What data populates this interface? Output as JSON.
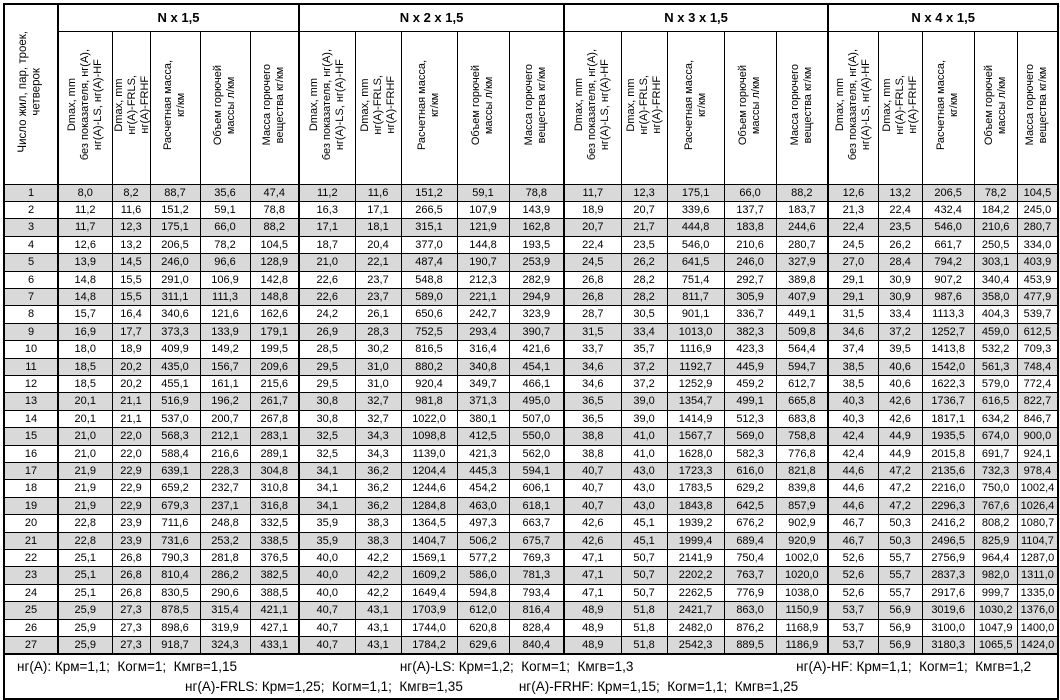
{
  "colors": {
    "stripe": "#d9d9d9",
    "border": "#000000",
    "text": "#000000",
    "background": "#ffffff"
  },
  "table": {
    "row_axis_header": "Число жил, пар, троек,\nчетверок",
    "groups": [
      {
        "title": "N x 1,5"
      },
      {
        "title": "N x 2 x 1,5"
      },
      {
        "title": "N x 3 x 1,5"
      },
      {
        "title": "N x 4 x 1,5"
      }
    ],
    "column_headers": [
      "Dmax, mm\nбез показателя, нг(А),\nнг(А)-LS, нг(А)-HF",
      "Dmax, mm\nнг(А)-FRLS,\nнг(А)-FRHF",
      "Расчетная масса,\nкг/км",
      "Объем горючей\nмассы л/км",
      "Масса горючего\nвещества кг/км"
    ],
    "rows": [
      [
        "1",
        "8,0",
        "8,2",
        "88,7",
        "35,6",
        "47,4",
        "11,2",
        "11,6",
        "151,2",
        "59,1",
        "78,8",
        "11,7",
        "12,3",
        "175,1",
        "66,0",
        "88,2",
        "12,6",
        "13,2",
        "206,5",
        "78,2",
        "104,5"
      ],
      [
        "2",
        "11,2",
        "11,6",
        "151,2",
        "59,1",
        "78,8",
        "16,3",
        "17,1",
        "266,5",
        "107,9",
        "143,9",
        "18,9",
        "20,7",
        "339,6",
        "137,7",
        "183,7",
        "21,3",
        "22,4",
        "432,4",
        "184,2",
        "245,0"
      ],
      [
        "3",
        "11,7",
        "12,3",
        "175,1",
        "66,0",
        "88,2",
        "17,1",
        "18,1",
        "315,1",
        "121,9",
        "162,8",
        "20,7",
        "21,7",
        "444,8",
        "183,8",
        "244,6",
        "22,4",
        "23,5",
        "546,0",
        "210,6",
        "280,7"
      ],
      [
        "4",
        "12,6",
        "13,2",
        "206,5",
        "78,2",
        "104,5",
        "18,7",
        "20,4",
        "377,0",
        "144,8",
        "193,5",
        "22,4",
        "23,5",
        "546,0",
        "210,6",
        "280,7",
        "24,5",
        "26,2",
        "661,7",
        "250,5",
        "334,0"
      ],
      [
        "5",
        "13,9",
        "14,5",
        "246,0",
        "96,6",
        "128,9",
        "21,0",
        "22,1",
        "487,4",
        "190,7",
        "253,9",
        "24,5",
        "26,2",
        "641,5",
        "246,0",
        "327,9",
        "27,0",
        "28,4",
        "794,2",
        "303,1",
        "403,9"
      ],
      [
        "6",
        "14,8",
        "15,5",
        "291,0",
        "106,9",
        "142,8",
        "22,6",
        "23,7",
        "548,8",
        "212,3",
        "282,9",
        "26,8",
        "28,2",
        "751,4",
        "292,7",
        "389,8",
        "29,1",
        "30,9",
        "907,2",
        "340,4",
        "453,9"
      ],
      [
        "7",
        "14,8",
        "15,5",
        "311,1",
        "111,3",
        "148,8",
        "22,6",
        "23,7",
        "589,0",
        "221,1",
        "294,9",
        "26,8",
        "28,2",
        "811,7",
        "305,9",
        "407,9",
        "29,1",
        "30,9",
        "987,6",
        "358,0",
        "477,9"
      ],
      [
        "8",
        "15,7",
        "16,4",
        "340,6",
        "121,6",
        "162,6",
        "24,2",
        "26,1",
        "650,6",
        "242,7",
        "323,9",
        "28,7",
        "30,5",
        "901,1",
        "336,7",
        "449,1",
        "31,5",
        "33,4",
        "1113,3",
        "404,3",
        "539,7"
      ],
      [
        "9",
        "16,9",
        "17,7",
        "373,3",
        "133,9",
        "179,1",
        "26,9",
        "28,3",
        "752,5",
        "293,4",
        "390,7",
        "31,5",
        "33,4",
        "1013,0",
        "382,3",
        "509,8",
        "34,6",
        "37,2",
        "1252,7",
        "459,0",
        "612,5"
      ],
      [
        "10",
        "18,0",
        "18,9",
        "409,9",
        "149,2",
        "199,5",
        "28,5",
        "30,2",
        "816,5",
        "316,4",
        "421,6",
        "33,7",
        "35,7",
        "1116,9",
        "423,3",
        "564,4",
        "37,4",
        "39,5",
        "1413,8",
        "532,2",
        "709,3"
      ],
      [
        "11",
        "18,5",
        "20,2",
        "435,0",
        "156,7",
        "209,6",
        "29,5",
        "31,0",
        "880,2",
        "340,8",
        "454,1",
        "34,6",
        "37,2",
        "1192,7",
        "445,9",
        "594,7",
        "38,5",
        "40,6",
        "1542,0",
        "561,3",
        "748,4"
      ],
      [
        "12",
        "18,5",
        "20,2",
        "455,1",
        "161,1",
        "215,6",
        "29,5",
        "31,0",
        "920,4",
        "349,7",
        "466,1",
        "34,6",
        "37,2",
        "1252,9",
        "459,2",
        "612,7",
        "38,5",
        "40,6",
        "1622,3",
        "579,0",
        "772,4"
      ],
      [
        "13",
        "20,1",
        "21,1",
        "516,9",
        "196,2",
        "261,7",
        "30,8",
        "32,7",
        "981,8",
        "371,3",
        "495,0",
        "36,5",
        "39,0",
        "1354,7",
        "499,1",
        "665,8",
        "40,3",
        "42,6",
        "1736,7",
        "616,5",
        "822,7"
      ],
      [
        "14",
        "20,1",
        "21,1",
        "537,0",
        "200,7",
        "267,8",
        "30,8",
        "32,7",
        "1022,0",
        "380,1",
        "507,0",
        "36,5",
        "39,0",
        "1414,9",
        "512,3",
        "683,8",
        "40,3",
        "42,6",
        "1817,1",
        "634,2",
        "846,7"
      ],
      [
        "15",
        "21,0",
        "22,0",
        "568,3",
        "212,1",
        "283,1",
        "32,5",
        "34,3",
        "1098,8",
        "412,5",
        "550,0",
        "38,8",
        "41,0",
        "1567,7",
        "569,0",
        "758,8",
        "42,4",
        "44,9",
        "1935,5",
        "674,0",
        "900,0"
      ],
      [
        "16",
        "21,0",
        "22,0",
        "588,4",
        "216,6",
        "289,1",
        "32,5",
        "34,3",
        "1139,0",
        "421,3",
        "562,0",
        "38,8",
        "41,0",
        "1628,0",
        "582,3",
        "776,8",
        "42,4",
        "44,9",
        "2015,8",
        "691,7",
        "924,1"
      ],
      [
        "17",
        "21,9",
        "22,9",
        "639,1",
        "228,3",
        "304,8",
        "34,1",
        "36,2",
        "1204,4",
        "445,3",
        "594,1",
        "40,7",
        "43,0",
        "1723,3",
        "616,0",
        "821,8",
        "44,6",
        "47,2",
        "2135,6",
        "732,3",
        "978,4"
      ],
      [
        "18",
        "21,9",
        "22,9",
        "659,2",
        "232,7",
        "310,8",
        "34,1",
        "36,2",
        "1244,6",
        "454,2",
        "606,1",
        "40,7",
        "43,0",
        "1783,5",
        "629,2",
        "839,8",
        "44,6",
        "47,2",
        "2216,0",
        "750,0",
        "1002,4"
      ],
      [
        "19",
        "21,9",
        "22,9",
        "679,3",
        "237,1",
        "316,8",
        "34,1",
        "36,2",
        "1284,8",
        "463,0",
        "618,1",
        "40,7",
        "43,0",
        "1843,8",
        "642,5",
        "857,9",
        "44,6",
        "47,2",
        "2296,3",
        "767,6",
        "1026,4"
      ],
      [
        "20",
        "22,8",
        "23,9",
        "711,6",
        "248,8",
        "332,5",
        "35,9",
        "38,3",
        "1364,5",
        "497,3",
        "663,7",
        "42,6",
        "45,1",
        "1939,2",
        "676,2",
        "902,9",
        "46,7",
        "50,3",
        "2416,2",
        "808,2",
        "1080,7"
      ],
      [
        "21",
        "22,8",
        "23,9",
        "731,6",
        "253,2",
        "338,5",
        "35,9",
        "38,3",
        "1404,7",
        "506,2",
        "675,7",
        "42,6",
        "45,1",
        "1999,4",
        "689,4",
        "920,9",
        "46,7",
        "50,3",
        "2496,5",
        "825,9",
        "1104,7"
      ],
      [
        "22",
        "25,1",
        "26,8",
        "790,3",
        "281,8",
        "376,5",
        "40,0",
        "42,2",
        "1569,1",
        "577,2",
        "769,3",
        "47,1",
        "50,7",
        "2141,9",
        "750,4",
        "1002,0",
        "52,6",
        "55,7",
        "2756,9",
        "964,4",
        "1287,0"
      ],
      [
        "23",
        "25,1",
        "26,8",
        "810,4",
        "286,2",
        "382,5",
        "40,0",
        "42,2",
        "1609,2",
        "586,0",
        "781,3",
        "47,1",
        "50,7",
        "2202,2",
        "763,7",
        "1020,0",
        "52,6",
        "55,7",
        "2837,3",
        "982,0",
        "1311,0"
      ],
      [
        "24",
        "25,1",
        "26,8",
        "830,5",
        "290,6",
        "388,5",
        "40,0",
        "42,2",
        "1649,4",
        "594,8",
        "793,4",
        "47,1",
        "50,7",
        "2262,5",
        "776,9",
        "1038,0",
        "52,6",
        "55,7",
        "2917,6",
        "999,7",
        "1335,0"
      ],
      [
        "25",
        "25,9",
        "27,3",
        "878,5",
        "315,4",
        "421,1",
        "40,7",
        "43,1",
        "1703,9",
        "612,0",
        "816,4",
        "48,9",
        "51,8",
        "2421,7",
        "863,0",
        "1150,9",
        "53,7",
        "56,9",
        "3019,6",
        "1030,2",
        "1376,0"
      ],
      [
        "26",
        "25,9",
        "27,3",
        "898,6",
        "319,9",
        "427,1",
        "40,7",
        "43,1",
        "1744,0",
        "620,8",
        "828,4",
        "48,9",
        "51,8",
        "2482,0",
        "876,2",
        "1168,9",
        "53,7",
        "56,9",
        "3100,0",
        "1047,9",
        "1400,0"
      ],
      [
        "27",
        "25,9",
        "27,3",
        "918,7",
        "324,3",
        "433,1",
        "40,7",
        "43,1",
        "1784,2",
        "629,6",
        "840,4",
        "48,9",
        "51,8",
        "2542,3",
        "889,5",
        "1186,9",
        "53,7",
        "56,9",
        "3180,3",
        "1065,5",
        "1424,0"
      ]
    ]
  },
  "footnotes": {
    "line1": [
      "нг(А): Крм=1,1;  Когм=1;  Кмгв=1,15",
      "нг(А)-LS: Крм=1,2;  Когм=1;  Кмгв=1,3",
      "нг(А)-HF: Крм=1,1;  Когм=1;  Кмгв=1,2"
    ],
    "line2": [
      "нг(А)-FRLS: Крм=1,25;  Когм=1,1;  Кмгв=1,35",
      "нг(А)-FRHF: Крм=1,15;  Когм=1,1;  Кмгв=1,25"
    ]
  }
}
